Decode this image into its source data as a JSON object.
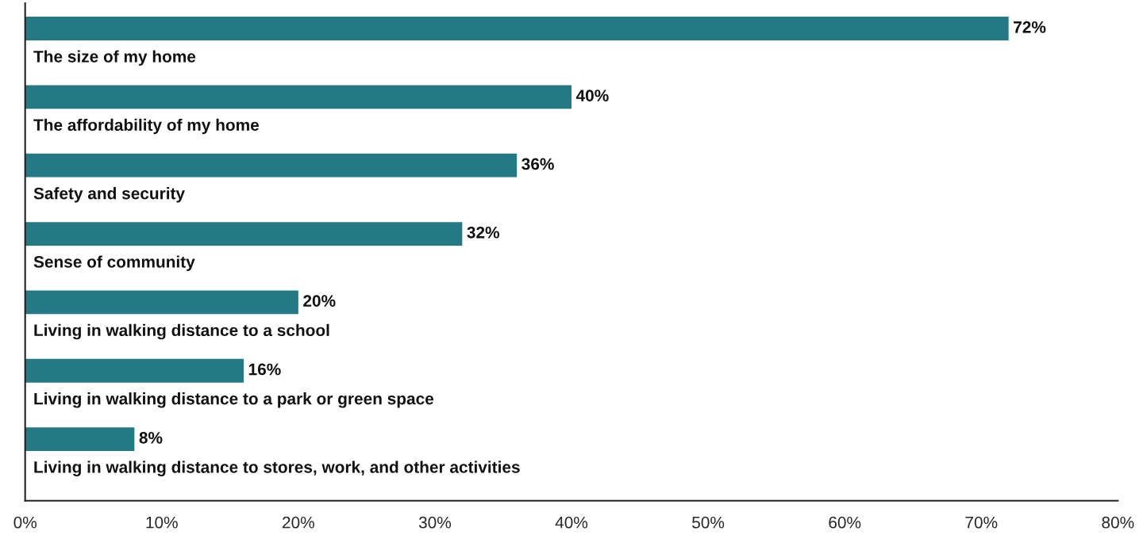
{
  "chart_data": {
    "type": "bar",
    "orientation": "horizontal",
    "categories": [
      "The size of my home",
      "The affordability of my home",
      "Safety and security",
      "Sense of community",
      "Living in walking distance to a school",
      "Living in walking distance to a park or green space",
      "Living in walking distance to stores, work, and other activities"
    ],
    "values": [
      72,
      40,
      36,
      32,
      20,
      16,
      8
    ],
    "value_labels": [
      "72%",
      "40%",
      "36%",
      "32%",
      "20%",
      "16%",
      "8%"
    ],
    "color": "#237a85",
    "xlim": [
      0,
      80
    ],
    "xticks": [
      {
        "value": 0,
        "label": "0%"
      },
      {
        "value": 10,
        "label": "10%"
      },
      {
        "value": 20,
        "label": "20%"
      },
      {
        "value": 30,
        "label": "30%"
      },
      {
        "value": 40,
        "label": "40%"
      },
      {
        "value": 50,
        "label": "50%"
      },
      {
        "value": 60,
        "label": "60%"
      },
      {
        "value": 70,
        "label": "70%"
      },
      {
        "value": 80,
        "label": "80%"
      }
    ],
    "tick_labels": "x",
    "grid": false,
    "legend": false
  }
}
